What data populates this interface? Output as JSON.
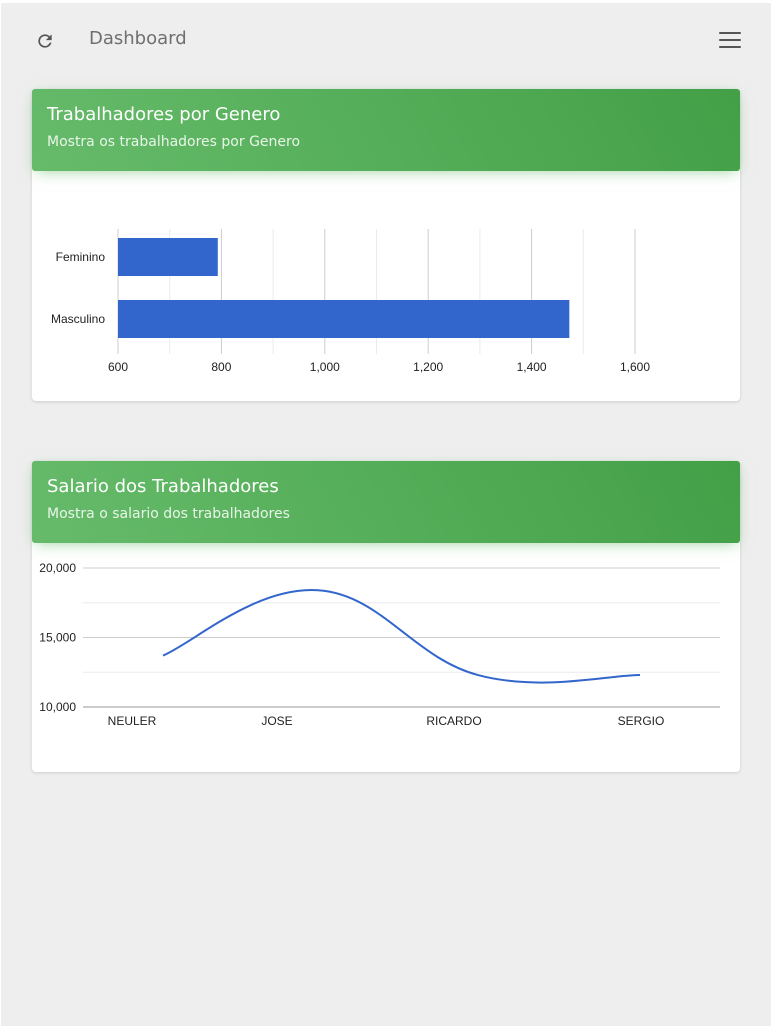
{
  "header": {
    "title": "Dashboard",
    "refresh_icon": "refresh-icon",
    "menu_icon": "menu-icon"
  },
  "colors": {
    "header_gradient_start": "#66bb6a",
    "header_gradient_end": "#43a047",
    "series": "#3366cc",
    "background": "#eeeeee"
  },
  "cards": [
    {
      "title": "Trabalhadores por Genero",
      "subtitle": "Mostra os trabalhadores por Genero"
    },
    {
      "title": "Salario dos Trabalhadores",
      "subtitle": "Mostra o salario dos trabalhadores"
    }
  ],
  "chart_data": [
    {
      "type": "bar",
      "orientation": "horizontal",
      "categories": [
        "Feminino",
        "Masculino"
      ],
      "values": [
        793,
        1473
      ],
      "xlim": [
        600,
        1600
      ],
      "xticks": [
        600,
        800,
        1000,
        1200,
        1400,
        1600
      ],
      "xtick_labels": [
        "600",
        "800",
        "1,000",
        "1,200",
        "1,400",
        "1,600"
      ],
      "grid": true,
      "legend": "none",
      "color": "#3366cc"
    },
    {
      "type": "line",
      "smooth": true,
      "categories": [
        "NEULER",
        "JOSE",
        "RICARDO",
        "SERGIO"
      ],
      "values": [
        13700,
        18400,
        12300,
        12300
      ],
      "ylim": [
        10000,
        20000
      ],
      "yticks": [
        10000,
        15000,
        20000
      ],
      "ytick_labels": [
        "10,000",
        "15,000",
        "20,000"
      ],
      "grid": true,
      "legend": "none",
      "color": "#3366cc"
    }
  ]
}
